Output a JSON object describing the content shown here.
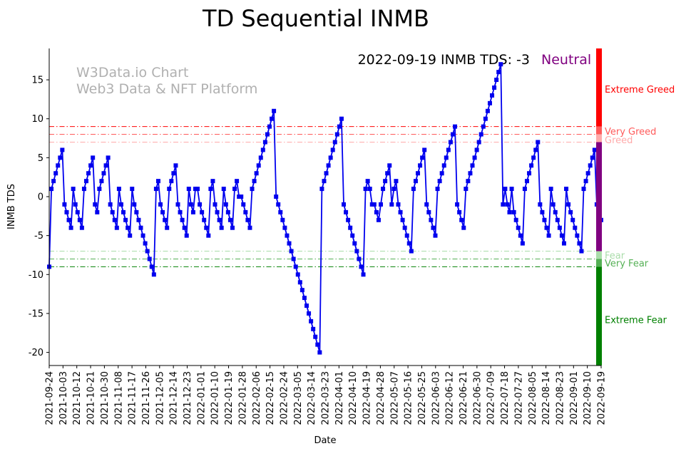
{
  "chart_data": {
    "type": "line",
    "title": "TD Sequential INMB",
    "xlabel": "Date",
    "ylabel": "INMB TDS",
    "ylim": [
      -22,
      19
    ],
    "yticks": [
      -20,
      -15,
      -10,
      -5,
      0,
      5,
      10,
      15
    ],
    "annotation": "2022-09-19 INMB TDS: -3",
    "status": {
      "label": "Neutral",
      "color": "#800080"
    },
    "watermark": [
      "W3Data.io Chart",
      "Web3 Data & NFT Platform"
    ],
    "xticks": [
      "2021-09-24",
      "2021-10-03",
      "2021-10-12",
      "2021-10-21",
      "2021-10-30",
      "2021-11-08",
      "2021-11-17",
      "2021-11-26",
      "2021-12-05",
      "2021-12-14",
      "2021-12-23",
      "2022-01-01",
      "2022-01-10",
      "2022-01-19",
      "2022-01-28",
      "2022-02-06",
      "2022-02-15",
      "2022-02-24",
      "2022-03-05",
      "2022-03-14",
      "2022-03-23",
      "2022-04-01",
      "2022-04-10",
      "2022-04-19",
      "2022-04-28",
      "2022-05-07",
      "2022-05-16",
      "2022-05-25",
      "2022-06-03",
      "2022-06-12",
      "2022-06-21",
      "2022-06-30",
      "2022-07-09",
      "2022-07-18",
      "2022-07-27",
      "2022-08-05",
      "2022-08-14",
      "2022-08-23",
      "2022-09-01",
      "2022-09-10",
      "2022-09-19"
    ],
    "thresholds": [
      {
        "label": "Very Greed",
        "value": 9,
        "color": "#ff0000",
        "style": "dashdot"
      },
      {
        "label": "Greed",
        "value": 8,
        "color": "#ff5a5a",
        "style": "dashdot"
      },
      {
        "label": "",
        "value": 7,
        "color": "#ffaaaa",
        "style": "dashdot"
      },
      {
        "label": "Fear",
        "value": -7,
        "color": "#aaddaa",
        "style": "dashdot"
      },
      {
        "label": "Very Fear",
        "value": -8,
        "color": "#55b055",
        "style": "dashdot"
      },
      {
        "label": "",
        "value": -9,
        "color": "#008000",
        "style": "dashdot"
      }
    ],
    "zones": [
      {
        "label": "Extreme Greed",
        "from": 7,
        "to": 19,
        "color": "#ff0000",
        "bar_from": 9
      },
      {
        "label": "Neutral",
        "from": -7,
        "to": 7,
        "color": "#800080"
      },
      {
        "label": "Extreme Fear",
        "from": -22,
        "to": -7,
        "color": "#008000",
        "bar_to": -9
      }
    ],
    "zone_labels": [
      {
        "text": "Extreme Greed",
        "value": 13.8,
        "color": "#ff0000"
      },
      {
        "text": "Very Greed",
        "value": 8.4,
        "color": "#ff5a5a"
      },
      {
        "text": "Greed",
        "value": 7.3,
        "color": "#ffaaaa"
      },
      {
        "text": "Fear",
        "value": -7.5,
        "color": "#aaddaa"
      },
      {
        "text": "Very Fear",
        "value": -8.5,
        "color": "#55b055"
      },
      {
        "text": "Extreme Fear",
        "value": -15.8,
        "color": "#008000"
      }
    ],
    "series": [
      {
        "name": "INMB TDS",
        "color": "#0000ee",
        "values": [
          -9,
          1,
          2,
          3,
          4,
          5,
          6,
          -1,
          -2,
          -3,
          -4,
          1,
          -1,
          -2,
          -3,
          -4,
          1,
          2,
          3,
          4,
          5,
          -1,
          -2,
          1,
          2,
          3,
          4,
          5,
          -1,
          -2,
          -3,
          -4,
          1,
          -1,
          -2,
          -3,
          -4,
          -5,
          1,
          -1,
          -2,
          -3,
          -4,
          -5,
          -6,
          -7,
          -8,
          -9,
          -10,
          1,
          2,
          -1,
          -2,
          -3,
          -4,
          1,
          2,
          3,
          4,
          -1,
          -2,
          -3,
          -4,
          -5,
          1,
          -1,
          -2,
          1,
          1,
          -1,
          -2,
          -3,
          -4,
          -5,
          1,
          2,
          -1,
          -2,
          -3,
          -4,
          1,
          -1,
          -2,
          -3,
          -4,
          1,
          2,
          0,
          0,
          -1,
          -2,
          -3,
          -4,
          1,
          2,
          3,
          4,
          5,
          6,
          7,
          8,
          9,
          10,
          11,
          0,
          -1,
          -2,
          -3,
          -4,
          -5,
          -6,
          -7,
          -8,
          -9,
          -10,
          -11,
          -12,
          -13,
          -14,
          -15,
          -16,
          -17,
          -18,
          -19,
          -20,
          1,
          2,
          3,
          4,
          5,
          6,
          7,
          8,
          9,
          10,
          -1,
          -2,
          -3,
          -4,
          -5,
          -6,
          -7,
          -8,
          -9,
          -10,
          1,
          2,
          1,
          -1,
          -1,
          -2,
          -3,
          -1,
          1,
          2,
          3,
          4,
          -1,
          1,
          2,
          -1,
          -2,
          -3,
          -4,
          -5,
          -6,
          -7,
          1,
          2,
          3,
          4,
          5,
          6,
          -1,
          -2,
          -3,
          -4,
          -5,
          1,
          2,
          3,
          4,
          5,
          6,
          7,
          8,
          9,
          -1,
          -2,
          -3,
          -4,
          1,
          2,
          3,
          4,
          5,
          6,
          7,
          8,
          9,
          10,
          11,
          12,
          13,
          14,
          15,
          16,
          17,
          -1,
          1,
          -1,
          -2,
          1,
          -2,
          -3,
          -4,
          -5,
          -6,
          1,
          2,
          3,
          4,
          5,
          6,
          7,
          -1,
          -2,
          -3,
          -4,
          -5,
          1,
          -1,
          -2,
          -3,
          -4,
          -5,
          -6,
          1,
          -1,
          -2,
          -3,
          -4,
          -5,
          -6,
          -7,
          1,
          2,
          3,
          4,
          5,
          6,
          -1,
          -2,
          -3
        ]
      }
    ]
  }
}
